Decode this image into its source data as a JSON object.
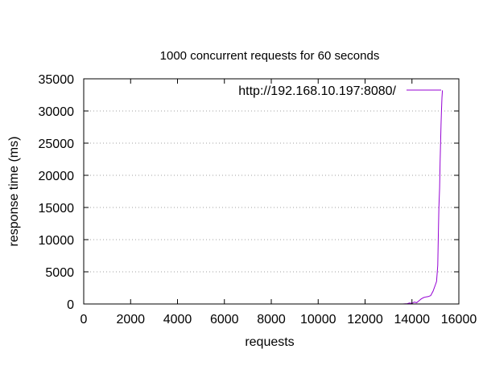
{
  "chart_data": {
    "type": "line",
    "title": "1000 concurrent requests for 60 seconds",
    "xlabel": "requests",
    "ylabel": "response time (ms)",
    "xlim": [
      0,
      16000
    ],
    "ylim": [
      0,
      35000
    ],
    "xticks": [
      0,
      2000,
      4000,
      6000,
      8000,
      10000,
      12000,
      14000,
      16000
    ],
    "yticks": [
      0,
      5000,
      10000,
      15000,
      20000,
      25000,
      30000,
      35000
    ],
    "grid": "horizontal-dotted",
    "legend_position": "top-right",
    "series": [
      {
        "name": "http://192.168.10.197:8080/",
        "color": "#9400d3",
        "x": [
          13600,
          13800,
          13900,
          14000,
          14100,
          14200,
          14300,
          14400,
          14500,
          14600,
          14700,
          14800,
          14900,
          15000,
          15050,
          15100,
          15120,
          15150,
          15180,
          15200,
          15220,
          15240,
          15260,
          15280,
          15300
        ],
        "y": [
          0,
          50,
          150,
          100,
          300,
          200,
          500,
          800,
          1000,
          1100,
          1150,
          1300,
          2000,
          3000,
          3500,
          6000,
          10000,
          15000,
          18000,
          22000,
          25000,
          28000,
          30000,
          32000,
          33200
        ]
      }
    ]
  }
}
